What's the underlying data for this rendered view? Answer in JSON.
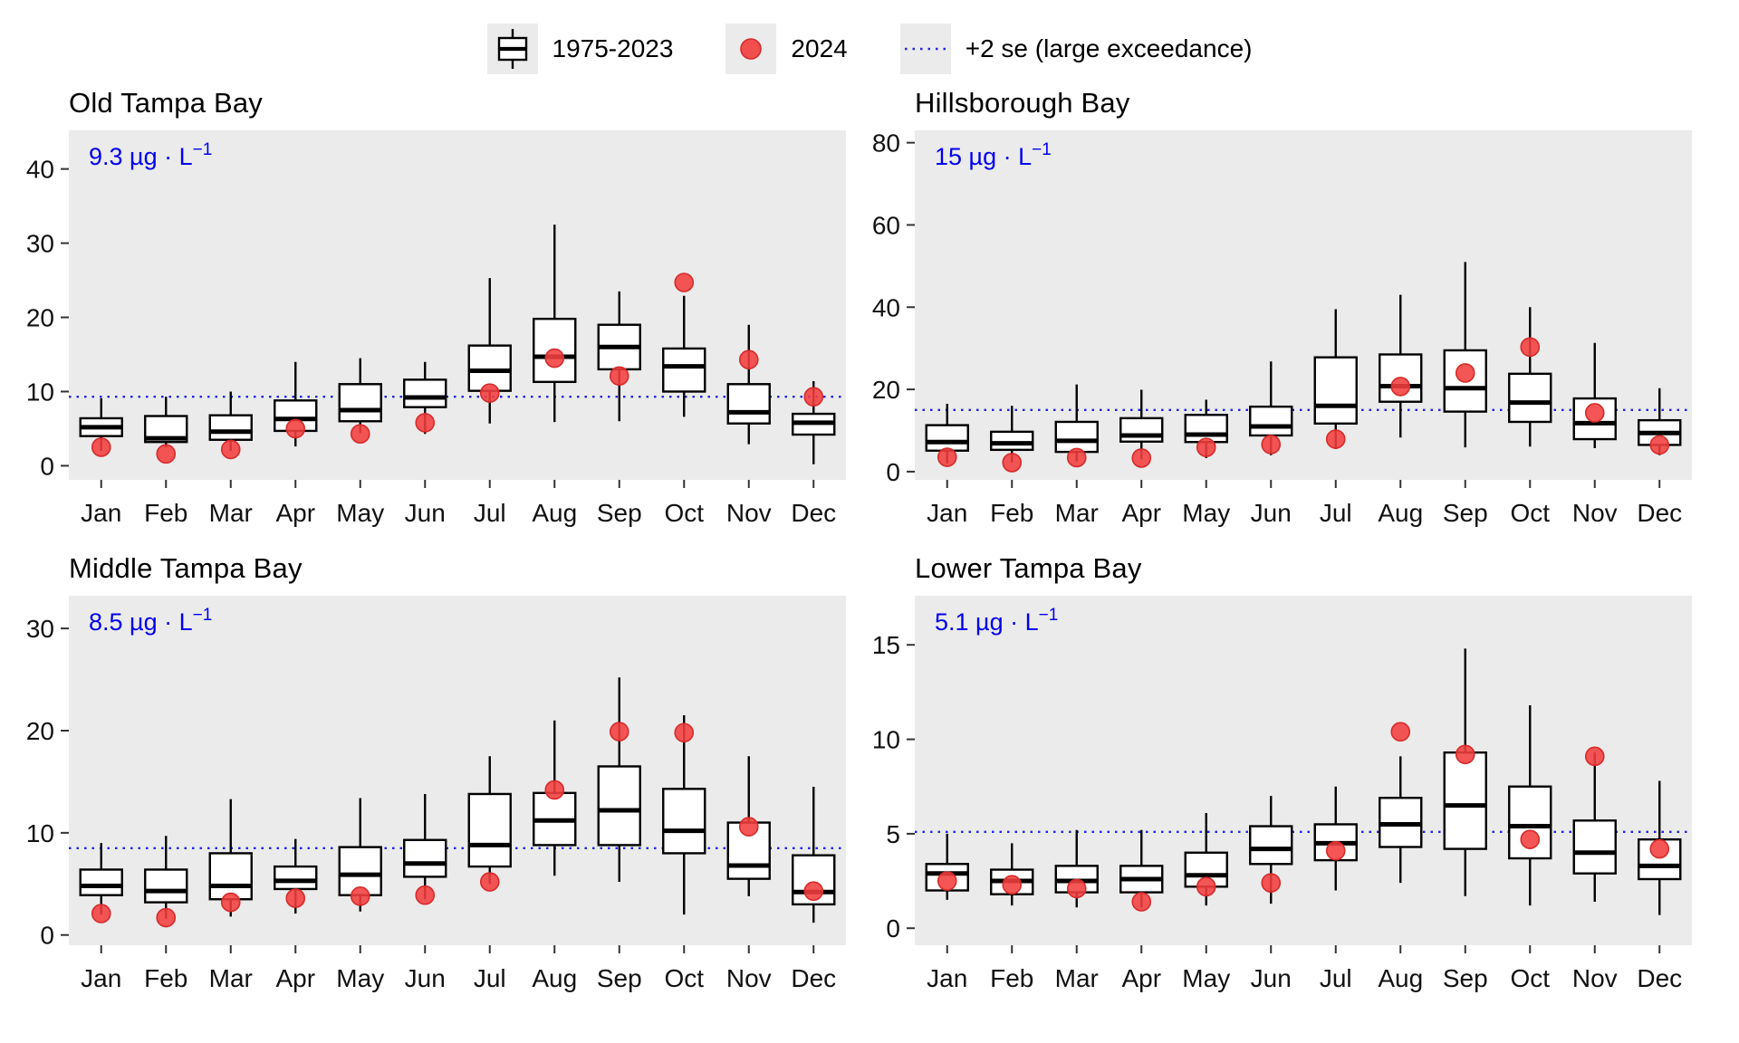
{
  "legend": {
    "box_label": "1975-2023",
    "dot_label": "2024",
    "line_label": "+2 se (large exceedance)"
  },
  "months": [
    "Jan",
    "Feb",
    "Mar",
    "Apr",
    "May",
    "Jun",
    "Jul",
    "Aug",
    "Sep",
    "Oct",
    "Nov",
    "Dec"
  ],
  "colors": {
    "panel_bg": "#ebebeb",
    "box_fill": "#ffffff",
    "box_stroke": "#000000",
    "dot_fill": "#f23d3d",
    "dot_stroke": "#d62b2b",
    "threshold_line": "#2222ee",
    "threshold_text": "#0000ee",
    "axis_text": "#111111"
  },
  "chart_data": [
    {
      "type": "boxplot",
      "title": "Old Tampa Bay",
      "annotation": {
        "text": "9.3 µg · L",
        "sup": "−1"
      },
      "threshold_2se": 9.3,
      "yticks": [
        0,
        10,
        20,
        30,
        40
      ],
      "ylim": [
        -1.9,
        45.2
      ],
      "categories": [
        "Jan",
        "Feb",
        "Mar",
        "Apr",
        "May",
        "Jun",
        "Jul",
        "Aug",
        "Sep",
        "Oct",
        "Nov",
        "Dec"
      ],
      "series": [
        {
          "name": "1975-2023",
          "type": "box",
          "whisker_low": [
            2.0,
            2.5,
            2.0,
            2.6,
            4.4,
            4.3,
            5.7,
            5.9,
            6.0,
            6.6,
            2.9,
            0.2
          ],
          "q1": [
            4.0,
            3.2,
            3.5,
            4.7,
            6.0,
            7.9,
            10.1,
            11.3,
            13.0,
            10.0,
            5.7,
            4.2
          ],
          "median": [
            5.2,
            3.7,
            4.6,
            6.3,
            7.5,
            9.2,
            12.8,
            14.7,
            16.0,
            13.4,
            7.2,
            5.8
          ],
          "q3": [
            6.4,
            6.7,
            6.8,
            8.8,
            11.0,
            11.6,
            16.2,
            19.8,
            19.0,
            15.8,
            11.0,
            7.0
          ],
          "whisker_high": [
            9.1,
            9.3,
            10.0,
            14.0,
            14.5,
            14.0,
            25.3,
            32.5,
            23.5,
            22.9,
            19.0,
            11.4
          ]
        },
        {
          "name": "2024",
          "type": "point",
          "values": [
            2.5,
            1.6,
            2.2,
            5.0,
            4.3,
            5.8,
            9.8,
            14.5,
            12.1,
            24.7,
            14.3,
            9.3
          ]
        }
      ]
    },
    {
      "type": "boxplot",
      "title": "Hillsborough Bay",
      "annotation": {
        "text": "15 µg · L",
        "sup": "−1"
      },
      "threshold_2se": 15,
      "yticks": [
        0,
        20,
        40,
        60,
        80
      ],
      "ylim": [
        -2.0,
        83.0
      ],
      "categories": [
        "Jan",
        "Feb",
        "Mar",
        "Apr",
        "May",
        "Jun",
        "Jul",
        "Aug",
        "Sep",
        "Oct",
        "Nov",
        "Dec"
      ],
      "series": [
        {
          "name": "1975-2023",
          "type": "box",
          "whisker_low": [
            2.0,
            2.2,
            2.5,
            3.0,
            3.3,
            4.0,
            5.5,
            8.3,
            5.9,
            6.1,
            5.7,
            4.0
          ],
          "q1": [
            5.1,
            5.3,
            4.8,
            7.3,
            7.2,
            8.8,
            11.7,
            17.0,
            14.6,
            12.1,
            7.9,
            6.5
          ],
          "median": [
            7.2,
            6.9,
            7.5,
            8.8,
            9.0,
            11.0,
            16.0,
            20.8,
            20.3,
            16.8,
            11.8,
            9.4
          ],
          "q3": [
            11.3,
            9.7,
            12.1,
            13.0,
            13.8,
            15.8,
            27.8,
            28.5,
            29.5,
            23.8,
            17.8,
            12.5
          ],
          "whisker_high": [
            16.5,
            16.0,
            21.2,
            19.9,
            17.5,
            26.8,
            39.5,
            43.0,
            51.0,
            40.0,
            31.3,
            20.3
          ]
        },
        {
          "name": "2024",
          "type": "point",
          "values": [
            3.5,
            2.2,
            3.4,
            3.3,
            5.9,
            6.6,
            7.9,
            20.7,
            24.0,
            30.3,
            14.3,
            6.5
          ]
        }
      ]
    },
    {
      "type": "boxplot",
      "title": "Middle Tampa Bay",
      "annotation": {
        "text": "8.5 µg · L",
        "sup": "−1"
      },
      "threshold_2se": 8.5,
      "yticks": [
        0,
        10,
        20,
        30
      ],
      "ylim": [
        -1.0,
        33.2
      ],
      "categories": [
        "Jan",
        "Feb",
        "Mar",
        "Apr",
        "May",
        "Jun",
        "Jul",
        "Aug",
        "Sep",
        "Oct",
        "Nov",
        "Dec"
      ],
      "series": [
        {
          "name": "1975-2023",
          "type": "box",
          "whisker_low": [
            2.0,
            1.6,
            1.8,
            2.1,
            2.3,
            3.5,
            5.0,
            5.8,
            5.2,
            2.0,
            3.8,
            1.2
          ],
          "q1": [
            3.9,
            3.2,
            3.5,
            4.5,
            3.9,
            5.7,
            6.7,
            8.8,
            8.8,
            8.0,
            5.5,
            3.0
          ],
          "median": [
            4.8,
            4.3,
            4.8,
            5.3,
            5.9,
            7.0,
            8.8,
            11.2,
            12.2,
            10.2,
            6.8,
            4.2
          ],
          "q3": [
            6.4,
            6.4,
            8.0,
            6.7,
            8.6,
            9.3,
            13.8,
            13.9,
            16.5,
            14.3,
            11.0,
            7.8
          ],
          "whisker_high": [
            9.0,
            9.7,
            13.3,
            9.4,
            13.4,
            13.8,
            17.5,
            21.0,
            25.2,
            21.5,
            17.5,
            14.5
          ]
        },
        {
          "name": "2024",
          "type": "point",
          "values": [
            2.1,
            1.7,
            3.2,
            3.6,
            3.8,
            3.9,
            5.2,
            14.2,
            19.9,
            19.8,
            10.6,
            4.3
          ]
        }
      ]
    },
    {
      "type": "boxplot",
      "title": "Lower Tampa Bay",
      "annotation": {
        "text": "5.1 µg · L",
        "sup": "−1"
      },
      "threshold_2se": 5.1,
      "yticks": [
        0,
        5,
        10,
        15
      ],
      "ylim": [
        -0.9,
        17.6
      ],
      "categories": [
        "Jan",
        "Feb",
        "Mar",
        "Apr",
        "May",
        "Jun",
        "Jul",
        "Aug",
        "Sep",
        "Oct",
        "Nov",
        "Dec"
      ],
      "series": [
        {
          "name": "1975-2023",
          "type": "box",
          "whisker_low": [
            1.5,
            1.2,
            1.1,
            1.1,
            1.2,
            1.3,
            2.0,
            2.4,
            1.7,
            1.2,
            1.4,
            0.7
          ],
          "q1": [
            2.0,
            1.8,
            1.9,
            1.9,
            2.2,
            3.4,
            3.6,
            4.3,
            4.2,
            3.7,
            2.9,
            2.6
          ],
          "median": [
            2.9,
            2.5,
            2.5,
            2.6,
            2.8,
            4.2,
            4.5,
            5.5,
            6.5,
            5.4,
            4.0,
            3.3
          ],
          "q3": [
            3.4,
            3.1,
            3.3,
            3.3,
            4.0,
            5.4,
            5.5,
            6.9,
            9.3,
            7.5,
            5.7,
            4.7
          ],
          "whisker_high": [
            5.0,
            4.5,
            5.2,
            5.2,
            6.1,
            7.0,
            7.5,
            9.1,
            14.8,
            11.8,
            9.3,
            7.8
          ]
        },
        {
          "name": "2024",
          "type": "point",
          "values": [
            2.5,
            2.3,
            2.1,
            1.4,
            2.2,
            2.4,
            4.1,
            10.4,
            9.2,
            4.7,
            9.1,
            4.2
          ]
        }
      ]
    }
  ]
}
